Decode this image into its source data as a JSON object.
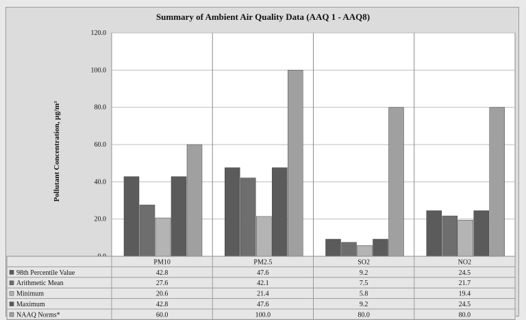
{
  "chart_data": {
    "type": "bar",
    "title": "Summary of Ambient Air Quality Data (AAQ 1 - AAQ8)",
    "ylabel": "Pollutant Concentration, µg/m³",
    "xlabel": "",
    "ylim": [
      0,
      120
    ],
    "yticks": [
      "0.0",
      "20.0",
      "40.0",
      "60.0",
      "80.0",
      "100.0",
      "120.0"
    ],
    "categories": [
      "PM10",
      "PM2.5",
      "SO2",
      "NO2"
    ],
    "series": [
      {
        "name": "98th Percentile Value",
        "color": "#5b5b5b",
        "values": [
          42.8,
          47.6,
          9.2,
          24.5
        ],
        "labels": [
          "42.8",
          "47.6",
          "9.2",
          "24.5"
        ]
      },
      {
        "name": "Arithmetic Mean",
        "color": "#6e6e6e",
        "values": [
          27.6,
          42.1,
          7.5,
          21.7
        ],
        "labels": [
          "27.6",
          "42.1",
          "7.5",
          "21.7"
        ]
      },
      {
        "name": "Minimum",
        "color": "#b4b4b4",
        "values": [
          20.6,
          21.4,
          5.8,
          19.4
        ],
        "labels": [
          "20.6",
          "21.4",
          "5.8",
          "19.4"
        ]
      },
      {
        "name": "Maximum",
        "color": "#5b5b5b",
        "values": [
          42.8,
          47.6,
          9.2,
          24.5
        ],
        "labels": [
          "42.8",
          "47.6",
          "9.2",
          "24.5"
        ]
      },
      {
        "name": "NAAQ Norms*",
        "color": "#a0a0a0",
        "values": [
          60,
          100,
          80,
          80
        ],
        "labels": [
          "60.0",
          "100.0",
          "80.0",
          "80.0"
        ]
      }
    ],
    "grid": true,
    "legend": "table below plot"
  }
}
